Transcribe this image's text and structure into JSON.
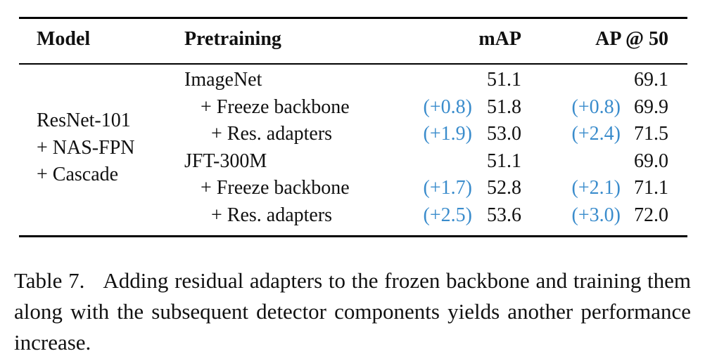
{
  "table": {
    "header": [
      "Model",
      "Pretraining",
      "mAP",
      "AP @ 50"
    ],
    "model": [
      "ResNet-101",
      "+ NAS-FPN",
      "+ Cascade"
    ],
    "groups": [
      {
        "pretraining": "ImageNet",
        "map": "51.1",
        "ap50": "69.1",
        "variants": [
          {
            "pretraining": "+ Freeze backbone",
            "map_delta": "(+0.8)",
            "map": "51.8",
            "ap50_delta": "(+0.8)",
            "ap50": "69.9"
          },
          {
            "pretraining": "+ Res. adapters",
            "map_delta": "(+1.9)",
            "map": "53.0",
            "ap50_delta": "(+2.4)",
            "ap50": "71.5"
          }
        ]
      },
      {
        "pretraining": "JFT-300M",
        "map": "51.1",
        "ap50": "69.0",
        "variants": [
          {
            "pretraining": "+ Freeze backbone",
            "map_delta": "(+1.7)",
            "map": "52.8",
            "ap50_delta": "(+2.1)",
            "ap50": "71.1"
          },
          {
            "pretraining": "+ Res. adapters",
            "map_delta": "(+2.5)",
            "map": "53.6",
            "ap50_delta": "(+3.0)",
            "ap50": "72.0"
          }
        ]
      }
    ]
  },
  "caption": {
    "label": "Table 7.",
    "text": "Adding residual adapters to the frozen backbone and training them along with the subsequent detector components yields another performance increase."
  }
}
